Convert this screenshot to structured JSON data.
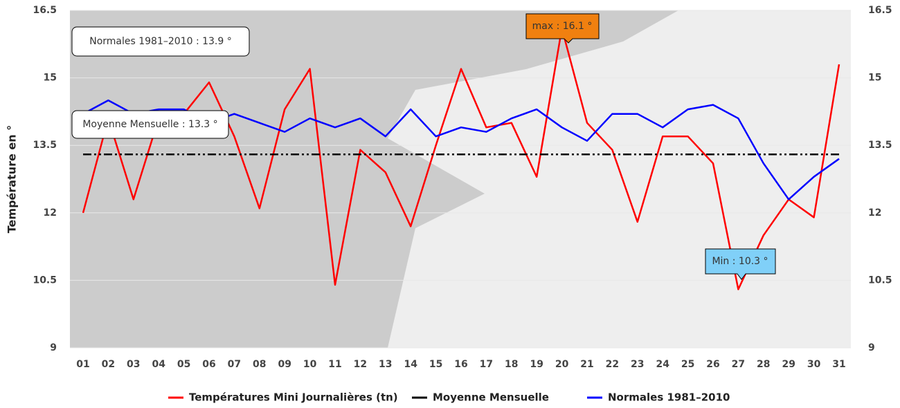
{
  "chart_data": {
    "type": "line",
    "y_label": "Température en °",
    "categories": [
      "01",
      "02",
      "03",
      "04",
      "05",
      "06",
      "07",
      "08",
      "09",
      "10",
      "11",
      "12",
      "13",
      "14",
      "15",
      "16",
      "17",
      "18",
      "19",
      "20",
      "21",
      "22",
      "23",
      "24",
      "25",
      "26",
      "27",
      "28",
      "29",
      "30",
      "31"
    ],
    "series": [
      {
        "name": "Températures Mini Journalières (tn)",
        "color": "#ff0000",
        "values": [
          12.0,
          14.1,
          12.3,
          14.1,
          14.2,
          14.9,
          13.7,
          12.1,
          14.3,
          15.2,
          10.4,
          13.4,
          12.9,
          11.7,
          13.5,
          15.2,
          13.9,
          14.0,
          12.8,
          16.1,
          14.0,
          13.4,
          11.8,
          13.7,
          13.7,
          13.1,
          10.3,
          11.5,
          12.3,
          11.9,
          15.3
        ]
      },
      {
        "name": "Moyenne Mensuelle",
        "color": "#000000",
        "dash": "12,4,3,4,3,4",
        "values": [
          13.3,
          13.3,
          13.3,
          13.3,
          13.3,
          13.3,
          13.3,
          13.3,
          13.3,
          13.3,
          13.3,
          13.3,
          13.3,
          13.3,
          13.3,
          13.3,
          13.3,
          13.3,
          13.3,
          13.3,
          13.3,
          13.3,
          13.3,
          13.3,
          13.3,
          13.3,
          13.3,
          13.3,
          13.3,
          13.3,
          13.3
        ]
      },
      {
        "name": "Normales 1981–2010",
        "color": "#0000ff",
        "values": [
          14.2,
          14.5,
          14.2,
          14.3,
          14.3,
          14.0,
          14.2,
          14.0,
          13.8,
          14.1,
          13.9,
          14.1,
          13.7,
          14.3,
          13.7,
          13.9,
          13.8,
          14.1,
          14.3,
          13.9,
          13.6,
          14.2,
          14.2,
          13.9,
          14.3,
          14.4,
          14.1,
          13.1,
          12.3,
          12.8,
          13.2
        ]
      }
    ],
    "ylim": [
      9,
      16.5
    ],
    "yticks": [
      9,
      10.5,
      12,
      13.5,
      15,
      16.5
    ],
    "y2lim": [
      9,
      16.5
    ],
    "y2ticks": [
      9,
      10.5,
      12,
      13.5,
      15,
      16.5
    ],
    "grid": true,
    "annotations": [
      "Normales 1981–2010 : 13.9 °",
      "Moyenne Mensuelle : 13.3 °",
      "max : 16.1 °",
      "Min : 10.3 °"
    ]
  }
}
